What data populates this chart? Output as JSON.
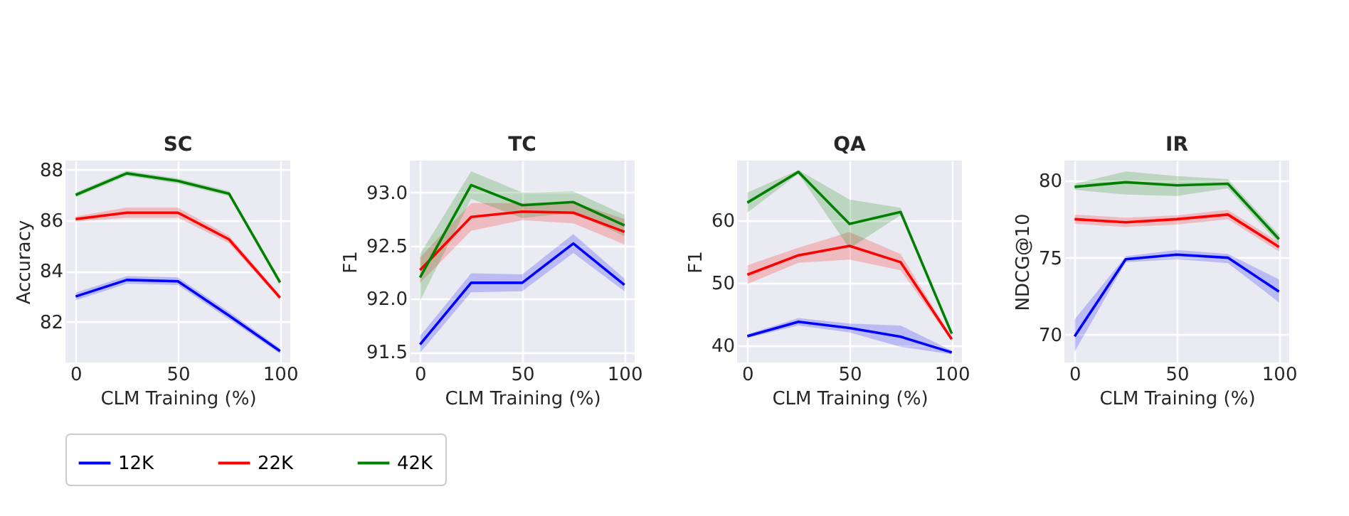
{
  "chart_data": [
    {
      "type": "line",
      "title": "SC",
      "xlabel": "CLM Training (%)",
      "ylabel": "Accuracy",
      "x": [
        0,
        25,
        50,
        75,
        100
      ],
      "xlim": [
        -5,
        105
      ],
      "xticks": [
        0,
        50,
        100
      ],
      "ylim": [
        80.4,
        88.35
      ],
      "yticks": [
        82,
        84,
        86,
        88
      ],
      "grid": true,
      "legend": "bottom",
      "series": [
        {
          "name": "12K",
          "color": "#0000ff",
          "values": [
            83.0,
            83.65,
            83.6,
            82.25,
            80.85
          ],
          "lower": [
            82.85,
            83.5,
            83.45,
            82.1,
            80.75
          ],
          "upper": [
            83.15,
            83.8,
            83.75,
            82.4,
            80.95
          ]
        },
        {
          "name": "22K",
          "color": "#ff0000",
          "values": [
            86.05,
            86.3,
            86.3,
            85.25,
            82.95
          ],
          "lower": [
            85.95,
            86.1,
            86.1,
            85.1,
            82.85
          ],
          "upper": [
            86.15,
            86.5,
            86.5,
            85.4,
            83.05
          ]
        },
        {
          "name": "42K",
          "color": "#008000",
          "values": [
            87.0,
            87.85,
            87.55,
            87.05,
            83.55
          ],
          "lower": [
            86.9,
            87.75,
            87.45,
            86.95,
            83.45
          ],
          "upper": [
            87.1,
            87.95,
            87.65,
            87.15,
            83.65
          ]
        }
      ]
    },
    {
      "type": "line",
      "title": "TC",
      "xlabel": "CLM Training (%)",
      "ylabel": "F1",
      "x": [
        0,
        25,
        50,
        75,
        100
      ],
      "xlim": [
        -5,
        105
      ],
      "xticks": [
        0,
        50,
        100
      ],
      "ylim": [
        91.4,
        93.3
      ],
      "yticks": [
        91.5,
        {
          "value": 92,
          "label": "92.0"
        },
        92.5,
        {
          "value": 93,
          "label": "93.0"
        }
      ],
      "grid": true,
      "legend": "bottom",
      "series": [
        {
          "name": "12K",
          "color": "#0000ff",
          "values": [
            91.57,
            92.15,
            92.15,
            92.52,
            92.13
          ],
          "lower": [
            91.49,
            92.06,
            92.07,
            92.43,
            92.07
          ],
          "upper": [
            91.65,
            92.24,
            92.23,
            92.61,
            92.19
          ]
        },
        {
          "name": "22K",
          "color": "#ff0000",
          "values": [
            92.27,
            92.77,
            92.82,
            92.81,
            92.63
          ],
          "lower": [
            92.15,
            92.64,
            92.74,
            92.71,
            92.51
          ],
          "upper": [
            92.39,
            92.9,
            92.9,
            92.91,
            92.75
          ]
        },
        {
          "name": "42K",
          "color": "#008000",
          "values": [
            92.2,
            93.07,
            92.88,
            92.91,
            92.69
          ],
          "lower": [
            91.98,
            92.94,
            92.76,
            92.81,
            92.59
          ],
          "upper": [
            92.42,
            93.2,
            93.0,
            93.01,
            92.79
          ]
        }
      ]
    },
    {
      "type": "line",
      "title": "QA",
      "xlabel": "CLM Training (%)",
      "ylabel": "F1",
      "x": [
        0,
        25,
        50,
        75,
        100
      ],
      "xlim": [
        -5,
        105
      ],
      "xticks": [
        0,
        50,
        100
      ],
      "ylim": [
        37.3,
        69.5
      ],
      "yticks": [
        40,
        50,
        60
      ],
      "grid": true,
      "legend": "bottom",
      "series": [
        {
          "name": "12K",
          "color": "#0000ff",
          "values": [
            41.5,
            43.8,
            42.8,
            41.4,
            38.9
          ],
          "lower": [
            41.2,
            43.2,
            42.1,
            39.8,
            38.6
          ],
          "upper": [
            41.8,
            44.4,
            43.5,
            43.2,
            39.2
          ]
        },
        {
          "name": "22K",
          "color": "#ff0000",
          "values": [
            51.3,
            54.4,
            55.9,
            53.3,
            41.0
          ],
          "lower": [
            49.8,
            53.2,
            53.7,
            52.0,
            40.7
          ],
          "upper": [
            52.8,
            55.6,
            58.1,
            54.6,
            41.3
          ]
        },
        {
          "name": "42K",
          "color": "#008000",
          "values": [
            62.8,
            67.7,
            59.4,
            61.3,
            41.9
          ],
          "lower": [
            61.2,
            67.4,
            55.5,
            60.8,
            41.6
          ],
          "upper": [
            64.4,
            68.0,
            63.3,
            62.0,
            42.2
          ]
        }
      ]
    },
    {
      "type": "line",
      "title": "IR",
      "xlabel": "CLM Training (%)",
      "ylabel": "NDCG@10",
      "x": [
        0,
        25,
        50,
        75,
        100
      ],
      "xlim": [
        -5,
        105
      ],
      "xticks": [
        0,
        50,
        100
      ],
      "ylim": [
        68.2,
        81.3
      ],
      "yticks": [
        70,
        75,
        80
      ],
      "grid": true,
      "legend": "bottom",
      "series": [
        {
          "name": "12K",
          "color": "#0000ff",
          "values": [
            69.9,
            74.9,
            75.2,
            75.0,
            72.8
          ],
          "lower": [
            68.9,
            74.7,
            74.9,
            74.65,
            72.1
          ],
          "upper": [
            71.0,
            75.1,
            75.5,
            75.25,
            73.6
          ]
        },
        {
          "name": "22K",
          "color": "#ff0000",
          "values": [
            77.5,
            77.3,
            77.5,
            77.8,
            75.7
          ],
          "lower": [
            77.2,
            77.0,
            77.15,
            77.5,
            75.4
          ],
          "upper": [
            77.8,
            77.6,
            77.75,
            78.1,
            76.0
          ]
        },
        {
          "name": "42K",
          "color": "#008000",
          "values": [
            79.6,
            79.9,
            79.7,
            79.8,
            76.2
          ],
          "lower": [
            79.4,
            79.1,
            79.0,
            79.5,
            75.9
          ],
          "upper": [
            79.8,
            80.6,
            80.3,
            80.1,
            76.5
          ]
        }
      ]
    }
  ]
}
